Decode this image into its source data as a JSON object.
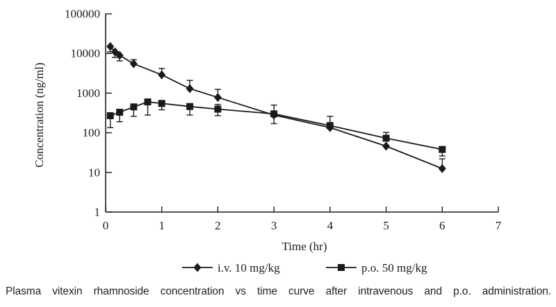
{
  "figure": {
    "caption": "Plasma vitexin rhamnoside concentration vs time curve after intravenous and p.o. administration."
  },
  "chart_data": {
    "type": "line",
    "title": "",
    "xlabel": "Time (hr)",
    "ylabel": "Concentration (ng/ml)",
    "ink_color": "#1a1a1a",
    "grid": false,
    "legend_position": "bottom-center",
    "x_axis": {
      "min": 0,
      "max": 7,
      "ticks": [
        0,
        1,
        2,
        3,
        4,
        5,
        6,
        7
      ]
    },
    "y_axis": {
      "scale": "log",
      "min": 1,
      "max": 100000,
      "ticks": [
        1,
        10,
        100,
        1000,
        10000,
        100000
      ]
    },
    "series": [
      {
        "name": "i.v. 10 mg/kg",
        "marker": "diamond",
        "points": [
          {
            "t": 0.083,
            "c": 15000,
            "err_lo": 11000
          },
          {
            "t": 0.167,
            "c": 11000,
            "err_lo": 8000
          },
          {
            "t": 0.25,
            "c": 9000,
            "err_lo": 6500
          },
          {
            "t": 0.5,
            "c": 5500,
            "err_hi": 7000
          },
          {
            "t": 1,
            "c": 2900,
            "err_hi": 4200
          },
          {
            "t": 1.5,
            "c": 1300,
            "err_hi": 2100
          },
          {
            "t": 2,
            "c": 780,
            "err_hi": 1250
          },
          {
            "t": 3,
            "c": 280,
            "err_lo": 170,
            "err_hi": 500
          },
          {
            "t": 4,
            "c": 135
          },
          {
            "t": 5,
            "c": 46
          },
          {
            "t": 6,
            "c": 12.5,
            "err_hi": 22
          }
        ]
      },
      {
        "name": "p.o. 50 mg/kg",
        "marker": "square",
        "points": [
          {
            "t": 0.083,
            "c": 270,
            "err_lo": 135
          },
          {
            "t": 0.25,
            "c": 330,
            "err_lo": 190
          },
          {
            "t": 0.5,
            "c": 450,
            "err_lo": 260
          },
          {
            "t": 0.75,
            "c": 600,
            "err_lo": 280
          },
          {
            "t": 1,
            "c": 550,
            "err_lo": 380
          },
          {
            "t": 1.5,
            "c": 460,
            "err_lo": 280
          },
          {
            "t": 2,
            "c": 395,
            "err_lo": 270,
            "err_hi": 520
          },
          {
            "t": 3,
            "c": 300
          },
          {
            "t": 4,
            "c": 152,
            "err_hi": 260
          },
          {
            "t": 5,
            "c": 73,
            "err_hi": 102
          },
          {
            "t": 6,
            "c": 38,
            "err_lo": 26
          }
        ]
      }
    ]
  }
}
